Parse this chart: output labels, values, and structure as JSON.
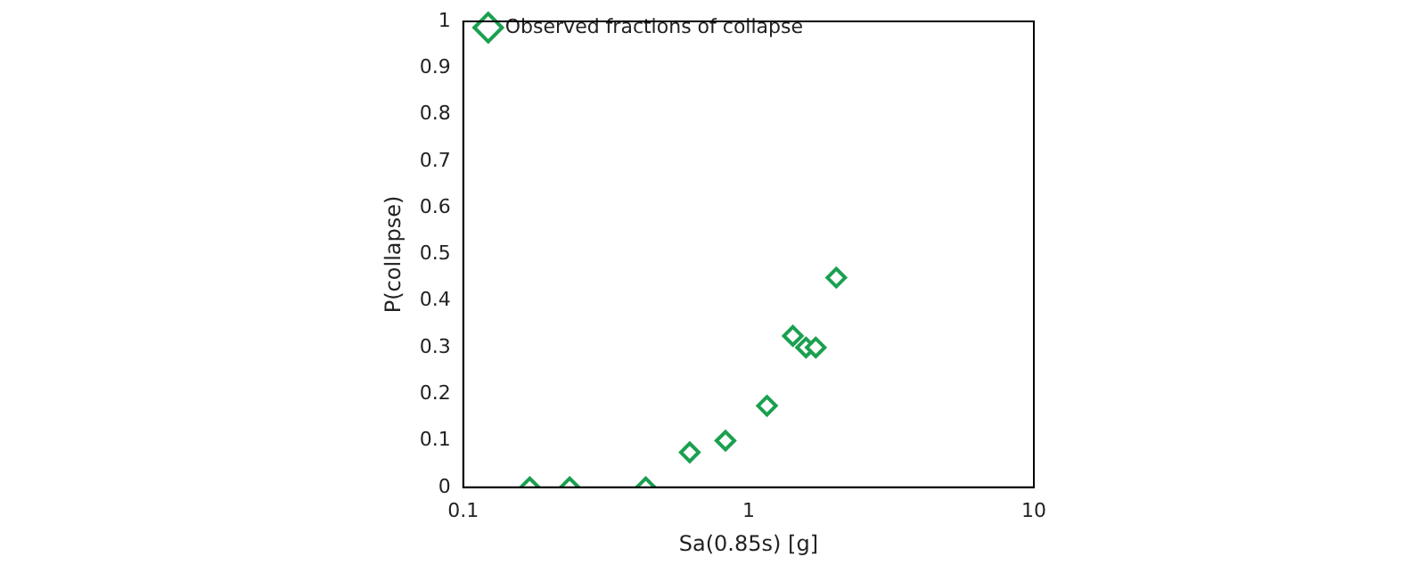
{
  "chart_data": {
    "type": "scatter",
    "xlabel": "Sa(0.85s) [g]",
    "ylabel": "P(collapse)",
    "log": "x",
    "grid": false,
    "legend": "top left",
    "marker": "diamond",
    "xlim": [
      0.1,
      10
    ],
    "xticks": [
      0.1,
      1,
      10
    ],
    "ylim": [
      0,
      1
    ],
    "yticks": [
      0,
      0.1,
      0.2,
      0.3,
      0.4,
      0.5,
      0.6,
      0.7,
      0.8,
      0.9,
      1
    ],
    "series": [
      {
        "name": "Observed fractions of collapse",
        "color": "#1aa050",
        "x": [
          0.171,
          0.236,
          0.436,
          0.622,
          0.83,
          1.16,
          1.43,
          1.59,
          1.72,
          2.03
        ],
        "values": [
          0,
          0,
          0,
          0.075,
          0.1,
          0.175,
          0.325,
          0.3,
          0.3,
          0.45
        ]
      }
    ]
  }
}
